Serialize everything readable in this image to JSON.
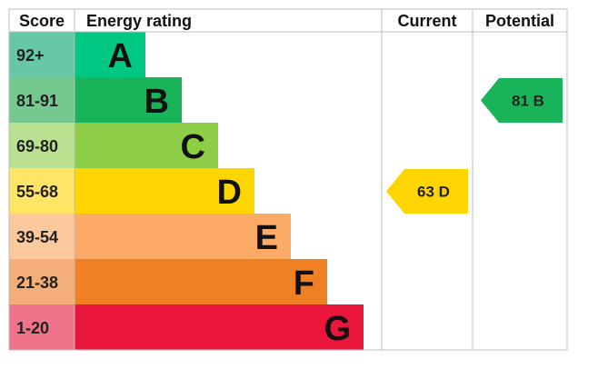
{
  "chart_data": {
    "type": "bar",
    "headers": {
      "score": "Score",
      "rating": "Energy rating",
      "current": "Current",
      "potential": "Potential"
    },
    "bands": [
      {
        "score": "92+",
        "letter": "A",
        "color": "#00c781",
        "score_bg": "#66c8a5"
      },
      {
        "score": "81-91",
        "letter": "B",
        "color": "#19b459",
        "score_bg": "#75c98f"
      },
      {
        "score": "69-80",
        "letter": "C",
        "color": "#8dce46",
        "score_bg": "#bae18f"
      },
      {
        "score": "55-68",
        "letter": "D",
        "color": "#ffd500",
        "score_bg": "#fee566"
      },
      {
        "score": "39-54",
        "letter": "E",
        "color": "#fcaa65",
        "score_bg": "#fcc99c"
      },
      {
        "score": "21-38",
        "letter": "F",
        "color": "#ef8023",
        "score_bg": "#f3ae79"
      },
      {
        "score": "1-20",
        "letter": "G",
        "color": "#e9153b",
        "score_bg": "#f07489"
      }
    ],
    "current": {
      "value": 63,
      "letter": "D",
      "label": "63  D",
      "color": "#ffd500"
    },
    "potential": {
      "value": 81,
      "letter": "B",
      "label": "81  B",
      "color": "#19b459"
    },
    "grid_color": "#bdbdbd"
  }
}
